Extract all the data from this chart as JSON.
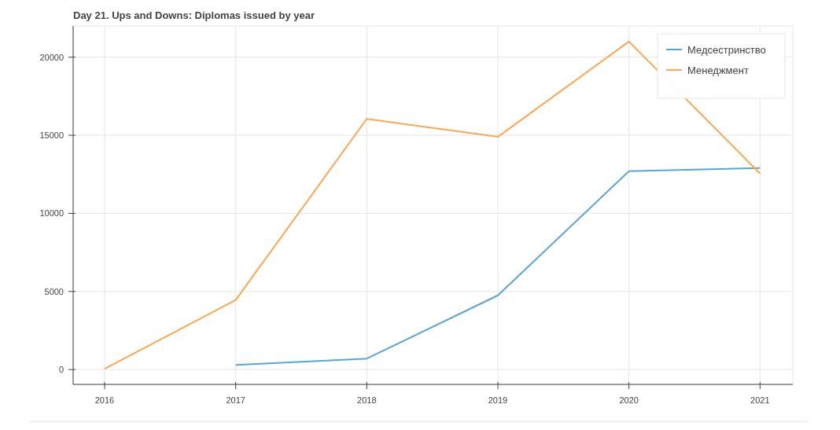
{
  "chart_data": {
    "type": "line",
    "title": "Day 21. Ups and Downs: Diplomas issued by year",
    "x": [
      2016,
      2017,
      2018,
      2019,
      2020,
      2021
    ],
    "series": [
      {
        "name": "Медсестринство",
        "color": "#5ba5d6",
        "values": [
          null,
          300,
          700,
          4750,
          12700,
          12900
        ]
      },
      {
        "name": "Менеджмент",
        "color": "#fca652",
        "values": [
          50,
          4450,
          16050,
          14900,
          21000,
          12550
        ]
      }
    ],
    "xlim": [
      2015.76,
      2021.25
    ],
    "xticks": [
      2016,
      2017,
      2018,
      2019,
      2020,
      2021
    ],
    "ylim": [
      -950,
      22000
    ],
    "yticks": [
      0,
      5000,
      10000,
      15000,
      20000
    ],
    "grid": true,
    "legend": "top right",
    "marker": "none",
    "line_style": "solid"
  }
}
